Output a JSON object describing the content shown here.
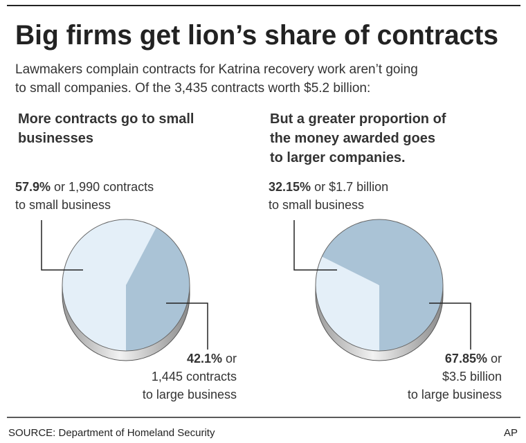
{
  "title": "Big firms get lion’s share of contracts",
  "intro": [
    "Lawmakers complain contracts for Katrina recovery work aren’t going",
    "to small companies. Of the 3,435 contracts worth $5.2 billion:"
  ],
  "source": "SOURCE: Department of Homeland Security",
  "credit": "AP",
  "chart_data": [
    {
      "type": "pie",
      "title": [
        "More contracts go to small",
        "businesses"
      ],
      "values": [
        57.9,
        42.1
      ],
      "value_labels": [
        "57.9%",
        "42.1%"
      ],
      "slice_notes": [
        [
          "or 1,990 contracts",
          "to small business"
        ],
        [
          "or",
          "1,445 contracts",
          "to large business"
        ]
      ],
      "colors": [
        "#e4eff8",
        "#aac3d6"
      ]
    },
    {
      "type": "pie",
      "title": [
        "But a greater proportion of",
        "the money awarded goes",
        "to larger companies."
      ],
      "values": [
        32.15,
        67.85
      ],
      "value_labels": [
        "32.15%",
        "67.85%"
      ],
      "slice_notes": [
        [
          "or $1.7 billion",
          "to small business"
        ],
        [
          "or",
          "$3.5 billion",
          "to large business"
        ]
      ],
      "colors": [
        "#e4eff8",
        "#aac3d6"
      ]
    }
  ]
}
